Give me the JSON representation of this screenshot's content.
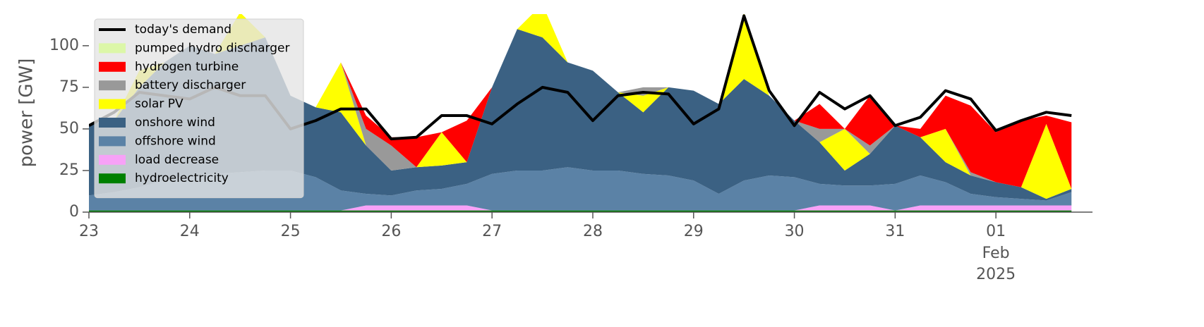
{
  "chart_data": {
    "type": "stacked_area",
    "y_label": "power [GW]",
    "ylim": [
      0,
      119
    ],
    "yticks": [
      0,
      25,
      50,
      75,
      100
    ],
    "xlim": [
      "2025-01-23 00:00",
      "2025-02-01 23:00"
    ],
    "xticks": [
      {
        "value": "2025-01-23 00:00",
        "label": "23"
      },
      {
        "value": "2025-01-24 00:00",
        "label": "24"
      },
      {
        "value": "2025-01-25 00:00",
        "label": "25"
      },
      {
        "value": "2025-01-26 00:00",
        "label": "26"
      },
      {
        "value": "2025-01-27 00:00",
        "label": "27"
      },
      {
        "value": "2025-01-28 00:00",
        "label": "28"
      },
      {
        "value": "2025-01-29 00:00",
        "label": "29"
      },
      {
        "value": "2025-01-30 00:00",
        "label": "30"
      },
      {
        "value": "2025-01-31 00:00",
        "label": "31"
      },
      {
        "value": "2025-02-01 00:00",
        "label": "01",
        "sublabels": [
          "Feb",
          "2025"
        ]
      }
    ],
    "legend": "upper left",
    "x": [
      "2025-01-23 00:00",
      "2025-01-23 06:00",
      "2025-01-23 12:00",
      "2025-01-23 18:00",
      "2025-01-24 00:00",
      "2025-01-24 06:00",
      "2025-01-24 12:00",
      "2025-01-24 18:00",
      "2025-01-25 00:00",
      "2025-01-25 06:00",
      "2025-01-25 12:00",
      "2025-01-25 18:00",
      "2025-01-26 00:00",
      "2025-01-26 06:00",
      "2025-01-26 12:00",
      "2025-01-26 18:00",
      "2025-01-27 00:00",
      "2025-01-27 06:00",
      "2025-01-27 12:00",
      "2025-01-27 18:00",
      "2025-01-28 00:00",
      "2025-01-28 06:00",
      "2025-01-28 12:00",
      "2025-01-28 18:00",
      "2025-01-29 00:00",
      "2025-01-29 06:00",
      "2025-01-29 12:00",
      "2025-01-29 18:00",
      "2025-01-30 00:00",
      "2025-01-30 06:00",
      "2025-01-30 12:00",
      "2025-01-30 18:00",
      "2025-01-31 00:00",
      "2025-01-31 06:00",
      "2025-01-31 12:00",
      "2025-01-31 18:00",
      "2025-02-01 00:00",
      "2025-02-01 06:00",
      "2025-02-01 12:00",
      "2025-02-01 18:00"
    ],
    "demand": {
      "name": "today's demand",
      "color": "#000000",
      "values": [
        52,
        60,
        72,
        70,
        68,
        75,
        70,
        70,
        50,
        55,
        62,
        62,
        44,
        45,
        58,
        58,
        53,
        65,
        75,
        72,
        55,
        70,
        72,
        71,
        53,
        62,
        118,
        73,
        52,
        72,
        62,
        70,
        52,
        57,
        73,
        68,
        49,
        55,
        60,
        58
      ]
    },
    "series": [
      {
        "name": "pumped hydro discharger",
        "color": "#dcf7a8",
        "values": [
          0,
          0,
          0,
          0,
          0,
          0,
          0,
          0,
          0,
          0,
          0,
          0,
          0,
          0,
          0,
          0,
          0,
          0,
          0,
          0,
          0,
          0,
          0,
          0,
          0,
          0,
          0,
          0,
          0,
          0,
          0,
          0,
          0,
          0,
          0,
          0,
          0,
          0,
          0,
          0
        ]
      },
      {
        "name": "hydrogen turbine",
        "color": "#ff0000",
        "values": [
          0,
          0,
          0,
          0,
          0,
          0,
          0,
          0,
          0,
          0,
          0,
          8,
          5,
          18,
          0,
          25,
          0,
          0,
          0,
          0,
          0,
          0,
          0,
          0,
          0,
          0,
          0,
          0,
          0,
          15,
          0,
          30,
          0,
          5,
          20,
          40,
          30,
          40,
          5,
          40
        ]
      },
      {
        "name": "battery discharger",
        "color": "#999999",
        "values": [
          0,
          0,
          0,
          0,
          0,
          0,
          0,
          0,
          0,
          0,
          0,
          10,
          15,
          0,
          0,
          0,
          0,
          0,
          0,
          0,
          0,
          0,
          5,
          0,
          0,
          0,
          0,
          0,
          0,
          8,
          0,
          5,
          0,
          0,
          0,
          2,
          0,
          0,
          0,
          0
        ]
      },
      {
        "name": "solar PV",
        "color": "#ffff00",
        "values": [
          0,
          0,
          10,
          0,
          0,
          0,
          20,
          0,
          0,
          0,
          30,
          0,
          0,
          0,
          20,
          0,
          0,
          0,
          20,
          0,
          0,
          0,
          10,
          0,
          0,
          0,
          40,
          0,
          0,
          0,
          25,
          0,
          0,
          0,
          20,
          0,
          0,
          0,
          45,
          0
        ]
      },
      {
        "name": "onshore wind",
        "color": "#3b6183",
        "values": [
          43,
          43,
          60,
          71,
          78,
          72,
          76,
          80,
          45,
          42,
          47,
          29,
          15,
          14,
          14,
          13,
          52,
          85,
          80,
          63,
          60,
          47,
          37,
          53,
          54,
          54,
          61,
          48,
          34,
          25,
          9,
          19,
          35,
          23,
          12,
          11,
          9,
          7,
          1,
          2
        ]
      },
      {
        "name": "offshore wind",
        "color": "#5b82a6",
        "values": [
          9,
          11,
          14,
          18,
          21,
          22,
          23,
          24,
          24,
          20,
          12,
          7,
          6,
          9,
          10,
          13,
          22,
          24,
          24,
          26,
          24,
          24,
          22,
          21,
          18,
          10,
          18,
          21,
          20,
          13,
          12,
          12,
          16,
          18,
          14,
          7,
          5,
          4,
          3,
          8
        ]
      },
      {
        "name": "load decrease",
        "color": "#f7a1f7",
        "values": [
          0,
          0,
          0,
          0,
          0,
          0,
          0,
          0,
          0,
          0,
          0,
          3,
          3,
          3,
          3,
          3,
          0,
          0,
          0,
          0,
          0,
          0,
          0,
          0,
          0,
          0,
          0,
          0,
          0,
          3,
          3,
          3,
          0,
          3,
          3,
          3,
          3,
          3,
          3,
          3
        ]
      },
      {
        "name": "hydroelectricity",
        "color": "#008000",
        "values": [
          1,
          1,
          1,
          1,
          1,
          1,
          1,
          1,
          1,
          1,
          1,
          1,
          1,
          1,
          1,
          1,
          1,
          1,
          1,
          1,
          1,
          1,
          1,
          1,
          1,
          1,
          1,
          1,
          1,
          1,
          1,
          1,
          1,
          1,
          1,
          1,
          1,
          1,
          1,
          1
        ]
      }
    ]
  }
}
